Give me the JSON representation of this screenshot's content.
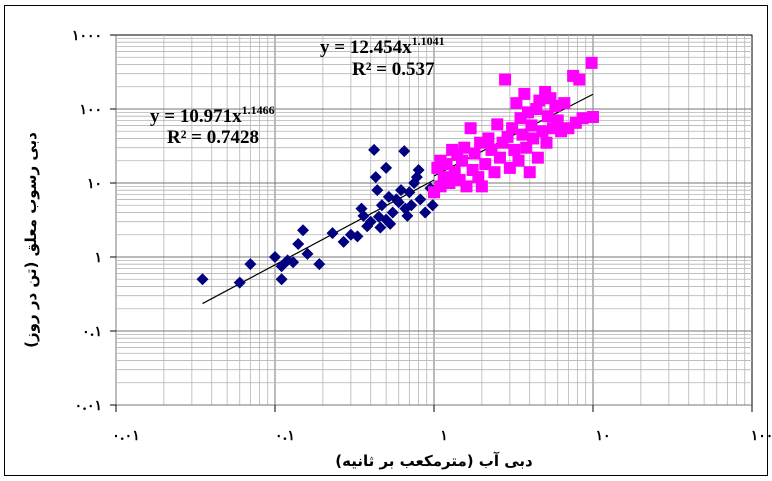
{
  "chart_data": {
    "type": "scatter",
    "title": "",
    "xlabel": "دبی آب (مترمکعب بر ثانیه)",
    "ylabel": "دبی رسوب معلق (تن در روز)",
    "xscale": "log",
    "yscale": "log",
    "xlim": [
      0.01,
      100
    ],
    "ylim": [
      0.01,
      1000
    ],
    "grid": true,
    "x_tick_labels": [
      "۰.۰۱",
      "۰.۱",
      "۱",
      "۱۰",
      "۱۰۰"
    ],
    "y_tick_labels": [
      "۱۰۰۰",
      "۱۰۰",
      "۱۰",
      "۱",
      "۰.۱",
      "۰.۰۱"
    ],
    "series": [
      {
        "color": "#000080",
        "marker": "diamond",
        "points": [
          [
            0.035,
            0.5
          ],
          [
            0.06,
            0.45
          ],
          [
            0.07,
            0.8
          ],
          [
            0.1,
            1.0
          ],
          [
            0.11,
            0.75
          ],
          [
            0.11,
            0.5
          ],
          [
            0.12,
            0.9
          ],
          [
            0.13,
            0.85
          ],
          [
            0.14,
            1.5
          ],
          [
            0.15,
            2.3
          ],
          [
            0.16,
            1.1
          ],
          [
            0.19,
            0.8
          ],
          [
            0.23,
            2.1
          ],
          [
            0.27,
            1.6
          ],
          [
            0.3,
            2.0
          ],
          [
            0.33,
            1.9
          ],
          [
            0.35,
            4.5
          ],
          [
            0.36,
            3.6
          ],
          [
            0.38,
            2.6
          ],
          [
            0.4,
            3.0
          ],
          [
            0.42,
            28.0
          ],
          [
            0.43,
            12.0
          ],
          [
            0.44,
            8.0
          ],
          [
            0.45,
            3.5
          ],
          [
            0.46,
            2.5
          ],
          [
            0.47,
            5.0
          ],
          [
            0.5,
            3.2
          ],
          [
            0.5,
            16.0
          ],
          [
            0.52,
            6.5
          ],
          [
            0.53,
            2.8
          ],
          [
            0.55,
            4.0
          ],
          [
            0.58,
            6.0
          ],
          [
            0.6,
            5.5
          ],
          [
            0.62,
            8.0
          ],
          [
            0.65,
            27.0
          ],
          [
            0.66,
            4.5
          ],
          [
            0.68,
            3.6
          ],
          [
            0.7,
            7.5
          ],
          [
            0.72,
            5.0
          ],
          [
            0.75,
            10.0
          ],
          [
            0.78,
            12.0
          ],
          [
            0.8,
            15.0
          ],
          [
            0.82,
            6.0
          ],
          [
            0.88,
            4.0
          ],
          [
            0.95,
            8.5
          ],
          [
            0.98,
            5.0
          ]
        ]
      },
      {
        "color": "#ff00ff",
        "marker": "square",
        "points": [
          [
            1.0,
            7.5
          ],
          [
            1.05,
            16.0
          ],
          [
            1.1,
            9.0
          ],
          [
            1.1,
            20.0
          ],
          [
            1.15,
            12.0
          ],
          [
            1.2,
            18.0
          ],
          [
            1.25,
            10.0
          ],
          [
            1.3,
            28.0
          ],
          [
            1.35,
            14.0
          ],
          [
            1.4,
            24.0
          ],
          [
            1.45,
            11.0
          ],
          [
            1.5,
            20.0
          ],
          [
            1.55,
            30.0
          ],
          [
            1.6,
            9.0
          ],
          [
            1.7,
            55.0
          ],
          [
            1.75,
            15.0
          ],
          [
            1.8,
            25.0
          ],
          [
            1.9,
            12.0
          ],
          [
            1.95,
            35.0
          ],
          [
            2.0,
            9.0
          ],
          [
            2.1,
            18.0
          ],
          [
            2.2,
            40.0
          ],
          [
            2.3,
            28.0
          ],
          [
            2.4,
            14.0
          ],
          [
            2.5,
            62.0
          ],
          [
            2.6,
            22.0
          ],
          [
            2.7,
            35.0
          ],
          [
            2.8,
            250.0
          ],
          [
            2.9,
            42.0
          ],
          [
            3.0,
            16.0
          ],
          [
            3.1,
            55.0
          ],
          [
            3.2,
            28.0
          ],
          [
            3.3,
            120.0
          ],
          [
            3.4,
            20.0
          ],
          [
            3.5,
            75.0
          ],
          [
            3.6,
            45.0
          ],
          [
            3.7,
            160.0
          ],
          [
            3.8,
            30.0
          ],
          [
            3.9,
            90.0
          ],
          [
            4.0,
            14.0
          ],
          [
            4.1,
            60.0
          ],
          [
            4.2,
            40.0
          ],
          [
            4.4,
            100.0
          ],
          [
            4.5,
            22.0
          ],
          [
            4.6,
            130.0
          ],
          [
            4.8,
            50.0
          ],
          [
            5.0,
            170.0
          ],
          [
            5.1,
            35.0
          ],
          [
            5.2,
            80.0
          ],
          [
            5.4,
            140.0
          ],
          [
            5.6,
            55.0
          ],
          [
            5.8,
            110.0
          ],
          [
            6.0,
            70.0
          ],
          [
            6.3,
            50.0
          ],
          [
            6.6,
            120.0
          ],
          [
            7.0,
            55.0
          ],
          [
            7.5,
            280.0
          ],
          [
            7.8,
            65.0
          ],
          [
            8.2,
            250.0
          ],
          [
            8.6,
            75.0
          ],
          [
            9.8,
            420.0
          ],
          [
            10.0,
            78.0
          ]
        ]
      }
    ],
    "trendlines": [
      {
        "a": 10.971,
        "b": 1.1466,
        "x_range": [
          0.035,
          1.0
        ]
      },
      {
        "a": 12.454,
        "b": 1.1041,
        "x_range": [
          1.0,
          10.0
        ]
      }
    ],
    "annotations": [
      {
        "eq_base": "y = 10.971x",
        "eq_exp": "1.1466",
        "r2": "R² = 0.7428"
      },
      {
        "eq_base": "y = 12.454x",
        "eq_exp": "1.1041",
        "r2": "R² = 0.537"
      }
    ]
  }
}
